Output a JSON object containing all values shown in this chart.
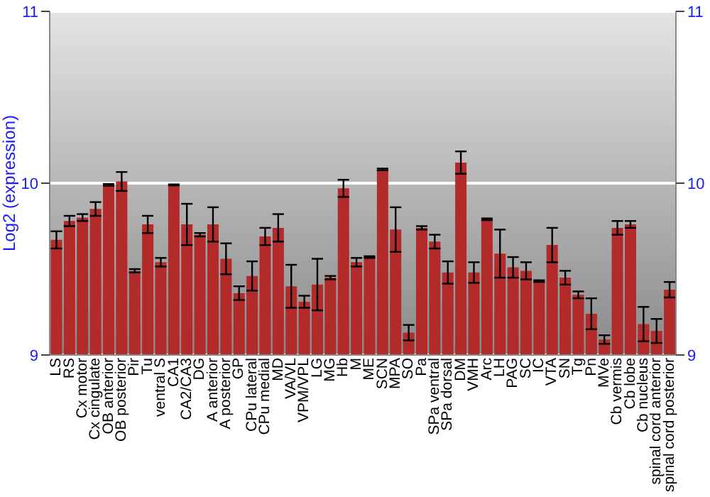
{
  "chart_data": {
    "type": "bar",
    "ylabel": "Log2 (expression)",
    "categories": [
      "LS",
      "RS",
      "Cx motor",
      "Cx cingulate",
      "OB anterior",
      "OB posterior",
      "Pir",
      "Tu",
      "ventral S",
      "CA1",
      "CA2/CA3",
      "DG",
      "A anterior",
      "A posterior",
      "GP",
      "CPu lateral",
      "CPu medial",
      "MD",
      "VA/VL",
      "VPM/VPL",
      "LG",
      "MG",
      "Hb",
      "M",
      "ME",
      "SCN",
      "MPA",
      "SO",
      "Pa",
      "SPa ventral",
      "SPa dorsal",
      "DM",
      "VMH",
      "Arc",
      "LH",
      "PAG",
      "SC",
      "IC",
      "VTA",
      "SN",
      "Tg",
      "Pn",
      "MVe",
      "Cb vermis",
      "Cb lobe",
      "Cb nucleus",
      "spinal cord anterior",
      "spinal cord posterior"
    ],
    "values": [
      9.67,
      9.78,
      9.8,
      9.85,
      9.99,
      10.01,
      9.49,
      9.76,
      9.54,
      9.99,
      9.76,
      9.7,
      9.76,
      9.56,
      9.36,
      9.46,
      9.69,
      9.74,
      9.4,
      9.31,
      9.41,
      9.45,
      9.97,
      9.54,
      9.57,
      10.08,
      9.73,
      9.13,
      9.74,
      9.66,
      9.48,
      10.12,
      9.48,
      9.79,
      9.59,
      9.51,
      9.49,
      9.43,
      9.64,
      9.45,
      9.35,
      9.24,
      9.09,
      9.74,
      9.76,
      9.18,
      9.14,
      9.38
    ],
    "errors": [
      0.05,
      0.03,
      0.02,
      0.04,
      0.005,
      0.055,
      0.01,
      0.05,
      0.025,
      0.003,
      0.12,
      0.01,
      0.1,
      0.09,
      0.04,
      0.085,
      0.05,
      0.08,
      0.125,
      0.035,
      0.15,
      0.01,
      0.05,
      0.025,
      0.005,
      0.005,
      0.13,
      0.045,
      0.01,
      0.04,
      0.065,
      0.065,
      0.06,
      0.005,
      0.14,
      0.06,
      0.05,
      0.005,
      0.1,
      0.04,
      0.02,
      0.09,
      0.025,
      0.04,
      0.02,
      0.1,
      0.07,
      0.045
    ],
    "color": "#b22a2a",
    "ylim": [
      9,
      11
    ],
    "yticks": [
      9,
      10,
      11
    ],
    "y2lim": [
      9,
      11
    ],
    "y2ticks": [
      9,
      10,
      11
    ],
    "grid": "y"
  }
}
